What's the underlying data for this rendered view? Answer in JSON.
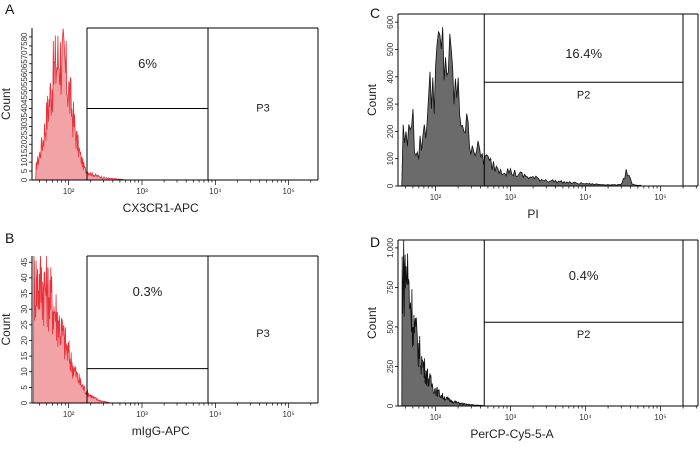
{
  "chart_data": [
    {
      "panel": "A",
      "type": "histogram",
      "xlabel": "CX3CR1-APC",
      "ylabel": "Count",
      "ytick_labels": [
        "0",
        "5",
        "10",
        "15",
        "20",
        "25",
        "30",
        "35",
        "40",
        "45",
        "50",
        "55",
        "60",
        "65",
        "70",
        "75",
        "80"
      ],
      "ylim": [
        0,
        85
      ],
      "x_scale": "log",
      "xlim_log10": [
        1.5,
        5.4
      ],
      "xtick_labels": [
        "10²",
        "10³",
        "10⁴",
        "10⁵"
      ],
      "xtick_log10": [
        2,
        3,
        4,
        5
      ],
      "histogram_color": "#e8313a",
      "histogram_fill": "#f2a3a6",
      "histogram_peak": {
        "log10": 1.88,
        "count": 80
      },
      "histogram_range_log10": [
        1.55,
        2.75
      ],
      "gates": [
        {
          "percent_label": "6%",
          "x_range_log10": [
            2.25,
            3.9
          ],
          "line_y_count": 40
        },
        {
          "name": "P3",
          "x_range_log10": [
            3.9,
            5.4
          ]
        }
      ]
    },
    {
      "panel": "B",
      "type": "histogram",
      "xlabel": "mIgG-APC",
      "ylabel": "Count",
      "ytick_labels": [
        "0",
        "5",
        "10",
        "15",
        "20",
        "25",
        "30",
        "35",
        "40",
        "45"
      ],
      "ylim": [
        0,
        47
      ],
      "x_scale": "log",
      "xlim_log10": [
        1.5,
        5.4
      ],
      "xtick_labels": [
        "10²",
        "10³",
        "10⁴",
        "10⁵"
      ],
      "xtick_log10": [
        2,
        3,
        4,
        5
      ],
      "histogram_color": "#e8313a",
      "histogram_fill": "#f2a3a6",
      "histogram_peak": {
        "log10": 1.6,
        "count": 45
      },
      "histogram_range_log10": [
        1.52,
        2.55
      ],
      "gates": [
        {
          "percent_label": "0.3%",
          "x_range_log10": [
            2.25,
            3.9
          ],
          "line_y_count": 11
        },
        {
          "name": "P3",
          "x_range_log10": [
            3.9,
            5.4
          ]
        }
      ]
    },
    {
      "panel": "C",
      "type": "histogram",
      "xlabel": "PI",
      "ylabel": "Count",
      "ytick_labels": [
        "0",
        "100",
        "200",
        "300",
        "400",
        "500",
        "600"
      ],
      "ylim": [
        0,
        630
      ],
      "x_scale": "log",
      "xlim_log10": [
        1.5,
        5.5
      ],
      "xtick_labels": [
        "10²",
        "10³",
        "10⁴",
        "10⁵"
      ],
      "xtick_log10": [
        2,
        3,
        4,
        5
      ],
      "histogram_color": "#111111",
      "histogram_fill": "#6b6b6b",
      "histogram_peak": {
        "log10": 2.1,
        "count": 560
      },
      "histogram_range_log10": [
        1.55,
        4.75
      ],
      "gates": [
        {
          "percent_label": "16.4%",
          "name": "P2",
          "x_range_log10": [
            2.65,
            5.3
          ],
          "line_y_count": 380
        }
      ]
    },
    {
      "panel": "D",
      "type": "histogram",
      "xlabel": "PerCP-Cy5-5-A",
      "ylabel": "Count",
      "ytick_labels": [
        "0",
        "250",
        "500",
        "750",
        "1,000"
      ],
      "ylim": [
        0,
        1050
      ],
      "x_scale": "log",
      "xlim_log10": [
        1.5,
        5.5
      ],
      "xtick_labels": [
        "10²",
        "10³",
        "10⁴",
        "10⁵"
      ],
      "xtick_log10": [
        2,
        3,
        4,
        5
      ],
      "histogram_color": "#111111",
      "histogram_fill": "#6b6b6b",
      "histogram_peak": {
        "log10": 1.62,
        "count": 1000
      },
      "histogram_range_log10": [
        1.55,
        2.65
      ],
      "gates": [
        {
          "percent_label": "0.4%",
          "name": "P2",
          "x_range_log10": [
            2.65,
            5.3
          ],
          "line_y_count": 530
        }
      ]
    }
  ]
}
